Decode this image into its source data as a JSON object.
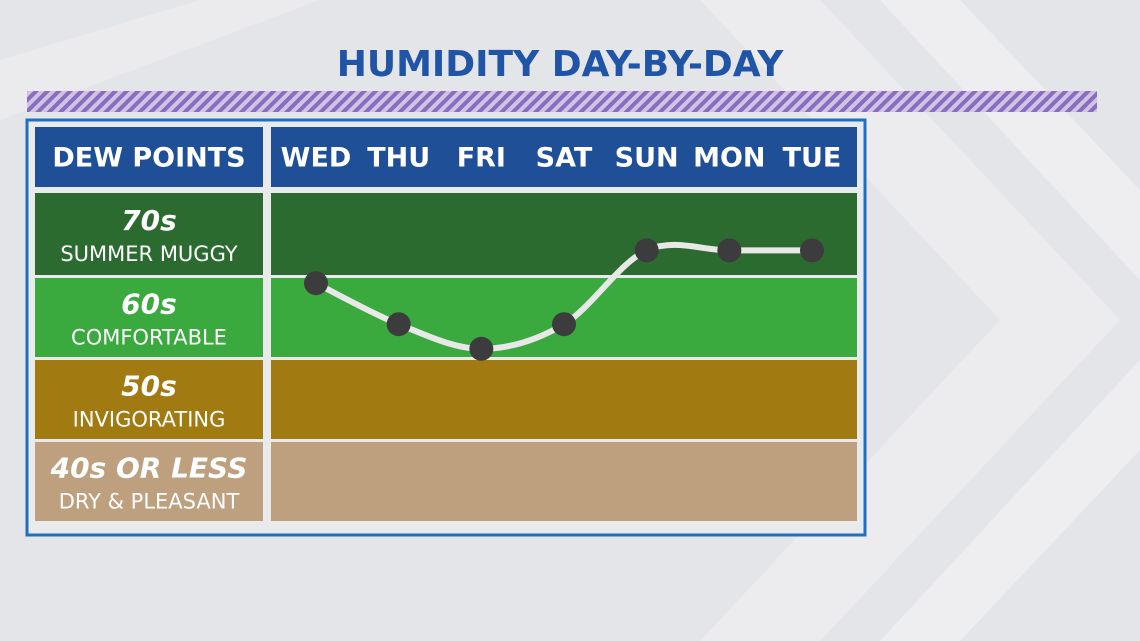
{
  "chart_data": {
    "type": "line",
    "title": "HUMIDITY DAY-BY-DAY",
    "y_header": "DEW POINTS",
    "categories": [
      "WED",
      "THU",
      "FRI",
      "SAT",
      "SUN",
      "MON",
      "TUE"
    ],
    "values": [
      69,
      64,
      61,
      64,
      73,
      73,
      73
    ],
    "line_color": "#e8e8e8",
    "marker_color": "#3c3c3e",
    "ylim": [
      40,
      80
    ],
    "yticks": [
      {
        "value": 70,
        "label": "70s"
      },
      {
        "value": 60,
        "label": "60s"
      },
      {
        "value": 50,
        "label": "50s"
      },
      {
        "value": 40,
        "label": "40s OR LESS"
      }
    ],
    "band_descriptions": [
      "SUMMER MUGGY",
      "COMFORTABLE",
      "INVIGORATING",
      "DRY & PLEASANT"
    ],
    "band_colors": [
      "#2c6b2f",
      "#3aa93e",
      "#a27a12",
      "#bfa07e"
    ],
    "header_color": "#1f4f97"
  }
}
